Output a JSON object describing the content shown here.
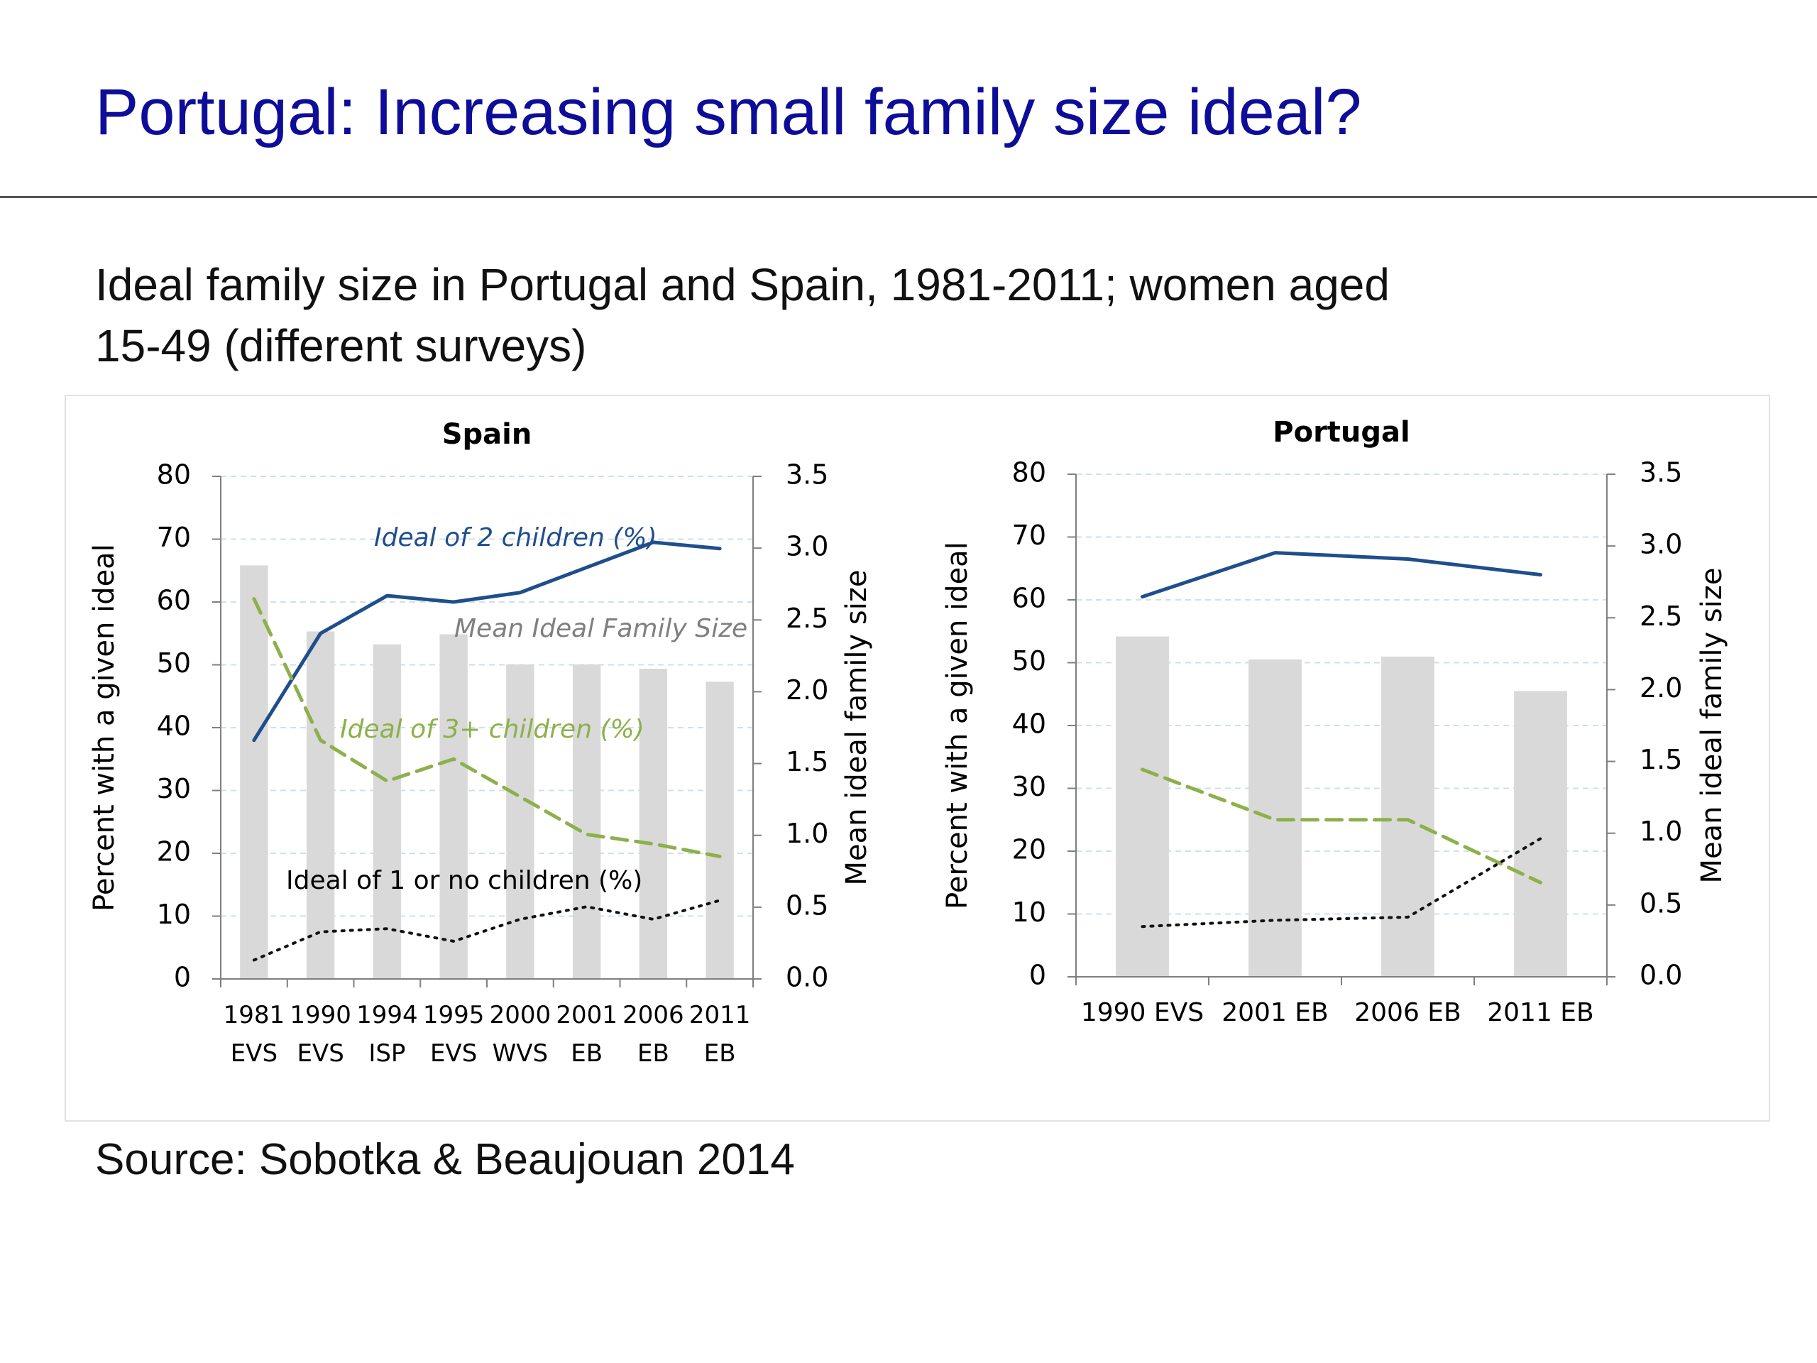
{
  "slide": {
    "title": "Portugal: Increasing small family size ideal?",
    "subtitle_line1": "Ideal family size in Portugal and Spain, 1981-2011; women aged",
    "subtitle_line2": "15-49 (different surveys)",
    "source": "Source: Sobotka & Beaujouan 2014"
  },
  "colors": {
    "title": "#0d0d99",
    "ideal2": "#1f4e8c",
    "ideal3plus": "#8db04a",
    "ideal1orless": "#111111",
    "bars": "#d9d9d9",
    "grid": "#cfe0ea"
  },
  "chart_data": [
    {
      "type": "bar+line",
      "title": "Spain",
      "ylabel": "Percent with a given ideal",
      "y2label": "Mean ideal family size",
      "ylim": [
        0,
        80
      ],
      "y2lim": [
        0,
        3.5
      ],
      "yticks": [
        "0",
        "10",
        "20",
        "30",
        "40",
        "50",
        "60",
        "70",
        "80"
      ],
      "y2ticks": [
        "0.0",
        "0.5",
        "1.0",
        "1.5",
        "2.0",
        "2.5",
        "3.0",
        "3.5"
      ],
      "grid": true,
      "categories": [
        [
          "1981",
          "EVS"
        ],
        [
          "1990",
          "EVS"
        ],
        [
          "1994",
          "ISP"
        ],
        [
          "1995",
          "EVS"
        ],
        [
          "2000",
          "WVS"
        ],
        [
          "2001",
          "EB"
        ],
        [
          "2006",
          "EB"
        ],
        [
          "2011",
          "EB"
        ]
      ],
      "bars": {
        "name": "Mean Ideal Family Size",
        "axis": "right",
        "values": [
          2.88,
          2.42,
          2.33,
          2.4,
          2.19,
          2.19,
          2.16,
          2.07
        ]
      },
      "series": [
        {
          "name": "Ideal of 2 children (%)",
          "style": "solid",
          "values": [
            38,
            55,
            61,
            60,
            61.5,
            65.5,
            69.5,
            68.5
          ]
        },
        {
          "name": "Ideal of 3+ children (%)",
          "style": "dashed",
          "values": [
            60.5,
            38,
            31.5,
            35,
            29,
            23,
            21.5,
            19.5
          ]
        },
        {
          "name": "Ideal of 1 or no children (%)",
          "style": "dotted",
          "values": [
            3,
            7.5,
            8,
            6,
            9.5,
            11.5,
            9.5,
            12.5
          ]
        }
      ],
      "labels": [
        {
          "text": "Ideal of 2 children (%)",
          "series": 0
        },
        {
          "text": "Mean Ideal Family Size",
          "series": "bars"
        },
        {
          "text": "Ideal of 3+ children (%)",
          "series": 1
        },
        {
          "text": "Ideal of 1 or no children  (%)",
          "series": 2
        }
      ]
    },
    {
      "type": "bar+line",
      "title": "Portugal",
      "ylabel": "Percent with a given ideal",
      "y2label": "Mean ideal family size",
      "ylim": [
        0,
        80
      ],
      "y2lim": [
        0,
        3.5
      ],
      "yticks": [
        "0",
        "10",
        "20",
        "30",
        "40",
        "50",
        "60",
        "70",
        "80"
      ],
      "y2ticks": [
        "0.0",
        "0.5",
        "1.0",
        "1.5",
        "2.0",
        "2.5",
        "3.0",
        "3.5"
      ],
      "grid": true,
      "categories": [
        [
          "1990 EVS"
        ],
        [
          "2001 EB"
        ],
        [
          "2006 EB"
        ],
        [
          "2011 EB"
        ]
      ],
      "bars": {
        "name": "Mean ideal family size",
        "axis": "right",
        "values": [
          2.37,
          2.21,
          2.23,
          1.99
        ]
      },
      "series": [
        {
          "name": "Ideal of 2 children (%)",
          "style": "solid",
          "values": [
            60.5,
            67.5,
            66.5,
            64
          ]
        },
        {
          "name": "Ideal of 3+ children (%)",
          "style": "dashed",
          "values": [
            33,
            25,
            25,
            15
          ]
        },
        {
          "name": "Ideal of 1 or no children (%)",
          "style": "dotted",
          "values": [
            8,
            9,
            9.5,
            22
          ]
        }
      ],
      "labels": []
    }
  ]
}
